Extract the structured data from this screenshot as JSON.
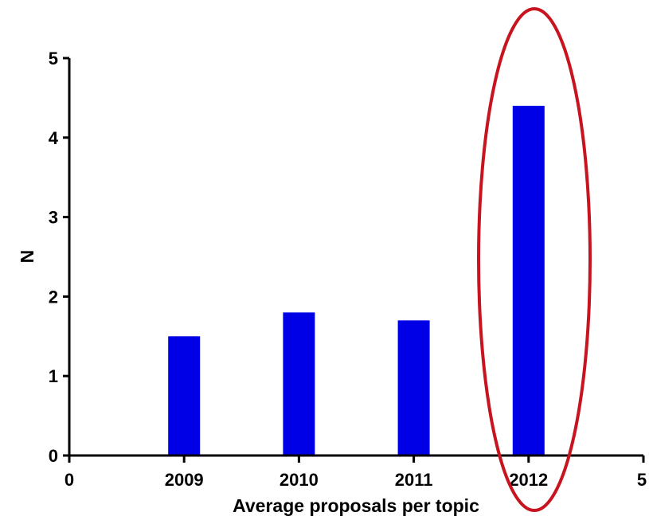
{
  "chart_data": {
    "type": "bar",
    "title": "",
    "xlabel": "Average proposals per topic",
    "ylabel": "N",
    "x_ticks": [
      "0",
      "2009",
      "2010",
      "2011",
      "2012",
      "5"
    ],
    "y_ticks": [
      "0",
      "1",
      "2",
      "3",
      "4",
      "5"
    ],
    "ylim": [
      0,
      5
    ],
    "categories": [
      "2009",
      "2010",
      "2011",
      "2012"
    ],
    "values": [
      1.5,
      1.8,
      1.7,
      4.4
    ],
    "bar_color": "#0000e6",
    "highlight": {
      "category": "2012",
      "shape": "ellipse",
      "color": "#c8141e"
    },
    "grid": false,
    "legend": "none"
  }
}
